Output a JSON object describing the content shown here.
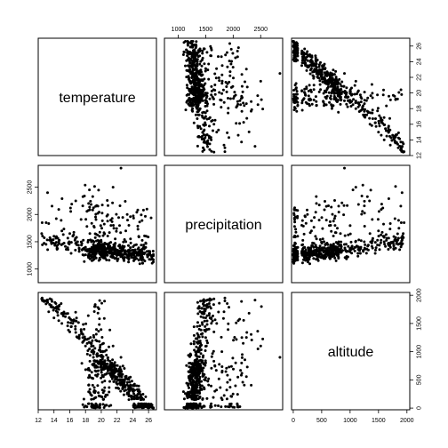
{
  "chart_data": {
    "type": "scatter",
    "title": "",
    "variables": [
      "temperature",
      "precipitation",
      "altitude"
    ],
    "ranges": {
      "temperature": [
        12,
        27
      ],
      "precipitation": [
        750,
        2900
      ],
      "altitude": [
        -30,
        2050
      ]
    },
    "ticks": {
      "temperature": [
        "12",
        "14",
        "16",
        "18",
        "20",
        "22",
        "24",
        "26"
      ],
      "precipitation": [
        "1000",
        "1500",
        "2000",
        "2500"
      ],
      "altitude": [
        "0",
        "500",
        "1000",
        "1500",
        "2000"
      ]
    },
    "approx_n_points": 600,
    "sample_points": [
      {
        "temperature": 26.3,
        "precipitation": 1250,
        "altitude": 20
      },
      {
        "temperature": 25.0,
        "precipitation": 1300,
        "altitude": 150
      },
      {
        "temperature": 24.0,
        "precipitation": 1350,
        "altitude": 300
      },
      {
        "temperature": 23.0,
        "precipitation": 1300,
        "altitude": 400
      },
      {
        "temperature": 22.0,
        "precipitation": 1250,
        "altitude": 550
      },
      {
        "temperature": 21.0,
        "precipitation": 1400,
        "altitude": 700
      },
      {
        "temperature": 20.0,
        "precipitation": 1500,
        "altitude": 800
      },
      {
        "temperature": 19.0,
        "precipitation": 1450,
        "altitude": 900
      },
      {
        "temperature": 18.0,
        "precipitation": 1400,
        "altitude": 1100
      },
      {
        "temperature": 17.0,
        "precipitation": 1500,
        "altitude": 1250
      },
      {
        "temperature": 16.0,
        "precipitation": 1650,
        "altitude": 1350
      },
      {
        "temperature": 15.0,
        "precipitation": 1700,
        "altitude": 1500
      },
      {
        "temperature": 14.0,
        "precipitation": 1600,
        "altitude": 1600
      },
      {
        "temperature": 13.0,
        "precipitation": 1850,
        "altitude": 1900
      },
      {
        "temperature": 12.5,
        "precipitation": 1850,
        "altitude": 1950
      },
      {
        "temperature": 18.5,
        "precipitation": 2450,
        "altitude": 1050
      },
      {
        "temperature": 21.5,
        "precipitation": 2500,
        "altitude": 1100
      },
      {
        "temperature": 22.5,
        "precipitation": 2850,
        "altitude": 900
      },
      {
        "temperature": 23.5,
        "precipitation": 1800,
        "altitude": 150
      },
      {
        "temperature": 20.5,
        "precipitation": 1200,
        "altitude": 200
      }
    ]
  }
}
